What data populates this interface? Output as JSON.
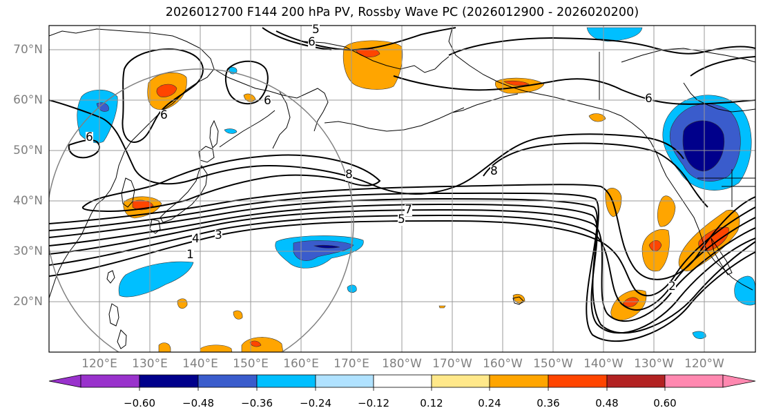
{
  "title": "2026012700 F144 200 hPa PV, Rossby Wave PC (2026012900 - 2026020200)",
  "lat_labels": [
    "70°N",
    "60°N",
    "50°N",
    "40°N",
    "30°N",
    "20°N"
  ],
  "lon_labels": [
    "120°E",
    "130°E",
    "140°E",
    "150°E",
    "160°E",
    "170°E",
    "180°W",
    "170°W",
    "160°W",
    "150°W",
    "140°W",
    "130°W",
    "120°W"
  ],
  "colorbar": {
    "ticks": [
      "−0.60",
      "−0.48",
      "−0.36",
      "−0.24",
      "−0.12",
      "0.12",
      "0.24",
      "0.36",
      "0.48",
      "0.60"
    ],
    "colors": [
      "#9932cc",
      "#00008b",
      "#3a5ccc",
      "#00bfff",
      "#b0e2ff",
      "#ffffff",
      "#ffe88a",
      "#ffa500",
      "#ff4500",
      "#b22222",
      "#ff88b0"
    ]
  },
  "contour_labels": [
    "5",
    "6",
    "6",
    "6",
    "6",
    "6",
    "8",
    "8",
    "7",
    "5",
    "4",
    "3",
    "1",
    "2"
  ]
}
